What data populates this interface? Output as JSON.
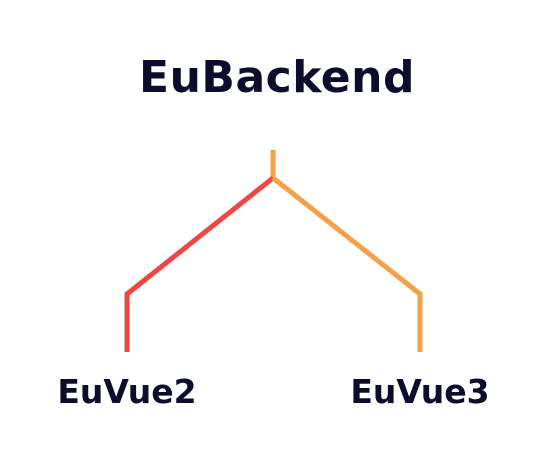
{
  "diagram": {
    "root": {
      "label": "EuBackend"
    },
    "children": [
      {
        "label": "EuVue2",
        "color": "#f04646"
      },
      {
        "label": "EuVue3",
        "color": "#f5a04a"
      }
    ],
    "colors": {
      "text": "#0d0d2b",
      "left_branch": "#f04646",
      "right_branch": "#f5a04a",
      "background": "#ffffff"
    }
  }
}
